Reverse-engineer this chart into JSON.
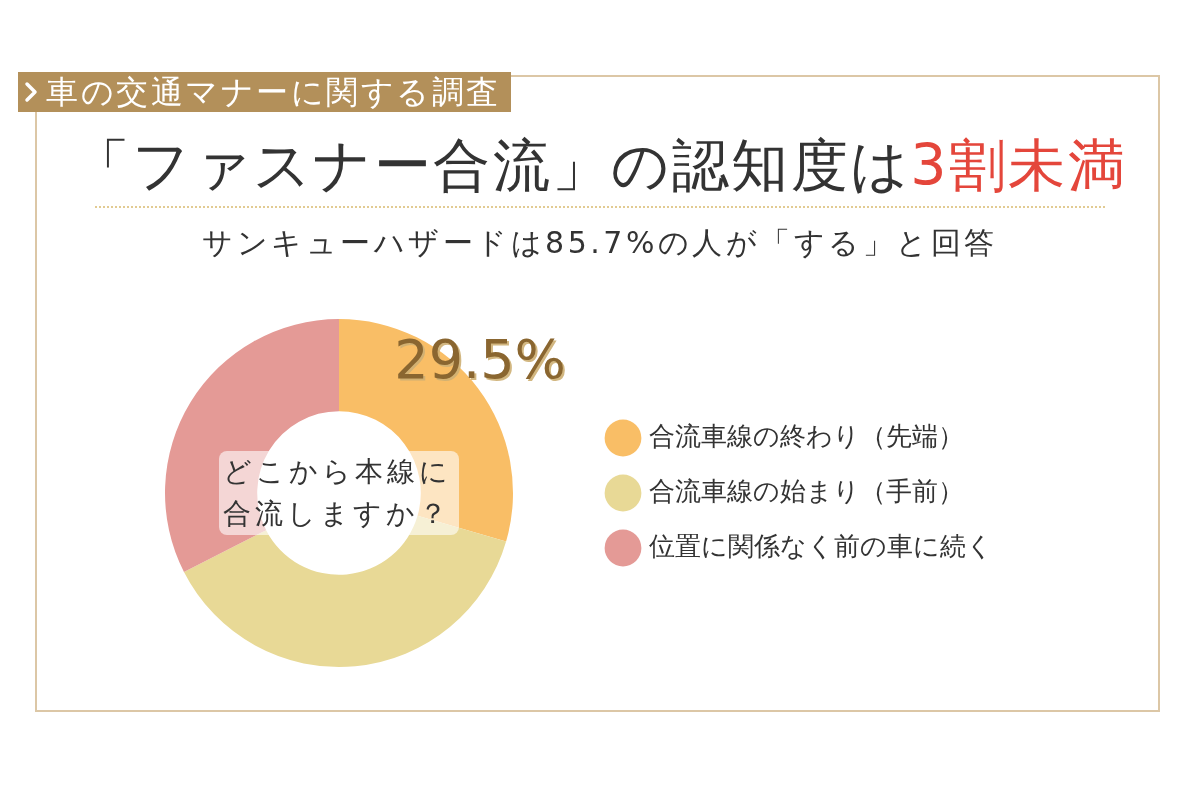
{
  "chart_data": {
    "type": "donut",
    "title": "「ファスナー合流」の認知度は3割未満",
    "subtitle": "サンキューハザードは85.7%の人が「する」と回答",
    "categories": [
      "合流車線の終わり（先端）",
      "合流車線の始まり（手前）",
      "位置に関係なく前の車に続く"
    ],
    "values": [
      29.5,
      38,
      32.5
    ],
    "colors": [
      "#f9be66",
      "#e8d996",
      "#e49a96"
    ],
    "value_labels": [
      "29.5%",
      null,
      null
    ],
    "legend": "right",
    "annotations": [
      "車の交通マナーに関する調査",
      "どこから本線に合流しますか？"
    ]
  }
}
